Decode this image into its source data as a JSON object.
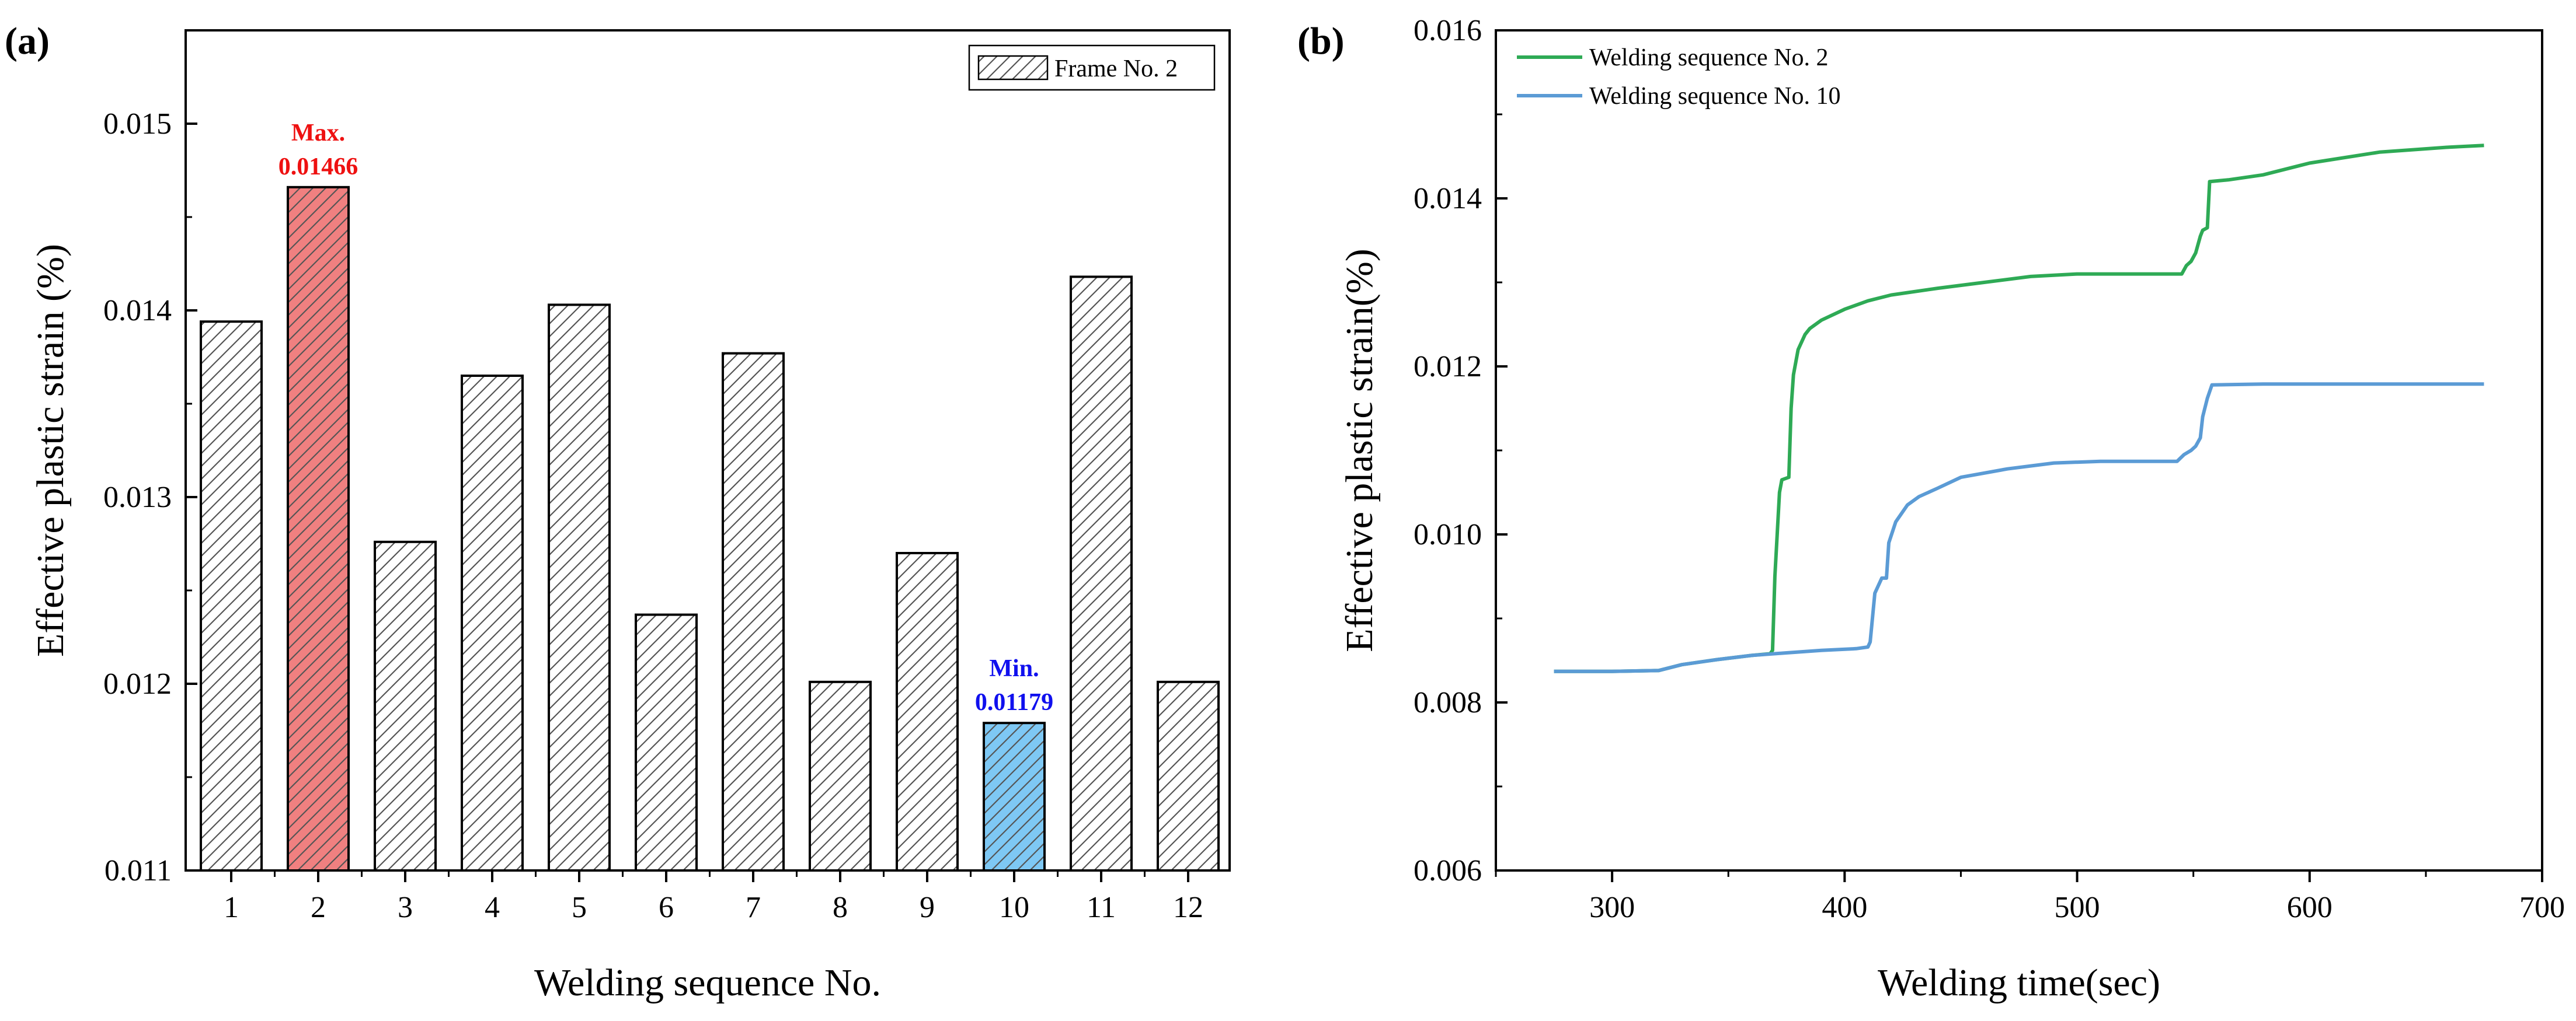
{
  "chart_data": [
    {
      "type": "bar",
      "panel_label": "(a)",
      "xlabel": "Welding sequence No.",
      "ylabel": "Effective plastic strain (%)",
      "ylim": [
        0.011,
        0.0155
      ],
      "yticks": [
        "0.011",
        "0.012",
        "0.013",
        "0.014",
        "0.015"
      ],
      "categories": [
        "1",
        "2",
        "3",
        "4",
        "5",
        "6",
        "7",
        "8",
        "9",
        "10",
        "11",
        "12"
      ],
      "values": [
        0.01394,
        0.01466,
        0.01276,
        0.01365,
        0.01403,
        0.01237,
        0.01377,
        0.01201,
        0.0127,
        0.01179,
        0.01418,
        0.01201
      ],
      "legend": "Frame No. 2",
      "bar_fill": "#ffffff",
      "hatch_color": "#555555",
      "highlights": [
        {
          "category": "2",
          "fill": "#f08080",
          "label_line1": "Max.",
          "label_line2": "0.01466",
          "color": "#ee1111"
        },
        {
          "category": "10",
          "fill": "#7ec8f4",
          "label_line1": "Min.",
          "label_line2": "0.01179",
          "color": "#1010ee"
        }
      ]
    },
    {
      "type": "line",
      "panel_label": "(b)",
      "xlabel": "Welding time(sec)",
      "ylabel": "Effective plastic strain(%)",
      "xlim": [
        250,
        700
      ],
      "ylim": [
        0.006,
        0.016
      ],
      "xticks": [
        "300",
        "400",
        "500",
        "600",
        "700"
      ],
      "yticks": [
        "0.006",
        "0.008",
        "0.010",
        "0.012",
        "0.014",
        "0.016"
      ],
      "series": [
        {
          "name": "Welding sequence No. 2",
          "color": "#2eaa55",
          "points": [
            [
              275,
              0.00837
            ],
            [
              300,
              0.00837
            ],
            [
              320,
              0.00838
            ],
            [
              330,
              0.00845
            ],
            [
              345,
              0.00851
            ],
            [
              360,
              0.00856
            ],
            [
              368,
              0.00858
            ],
            [
              369,
              0.00862
            ],
            [
              370,
              0.0095
            ],
            [
              372,
              0.0105
            ],
            [
              373,
              0.01065
            ],
            [
              376,
              0.01068
            ],
            [
              377,
              0.0115
            ],
            [
              378,
              0.0119
            ],
            [
              380,
              0.0122
            ],
            [
              383,
              0.01238
            ],
            [
              385,
              0.01245
            ],
            [
              390,
              0.01255
            ],
            [
              400,
              0.01268
            ],
            [
              410,
              0.01278
            ],
            [
              420,
              0.01285
            ],
            [
              440,
              0.01293
            ],
            [
              460,
              0.013
            ],
            [
              480,
              0.01307
            ],
            [
              500,
              0.0131
            ],
            [
              520,
              0.0131
            ],
            [
              545,
              0.0131
            ],
            [
              547,
              0.0132
            ],
            [
              549,
              0.01325
            ],
            [
              551,
              0.01335
            ],
            [
              552,
              0.01345
            ],
            [
              553,
              0.01355
            ],
            [
              554,
              0.01362
            ],
            [
              556,
              0.01365
            ],
            [
              557,
              0.0142
            ],
            [
              565,
              0.01422
            ],
            [
              580,
              0.01428
            ],
            [
              600,
              0.01442
            ],
            [
              630,
              0.01455
            ],
            [
              660,
              0.01461
            ],
            [
              675,
              0.01463
            ]
          ]
        },
        {
          "name": "Welding sequence No. 10",
          "color": "#5b9bd5",
          "points": [
            [
              275,
              0.00837
            ],
            [
              300,
              0.00837
            ],
            [
              320,
              0.00838
            ],
            [
              330,
              0.00845
            ],
            [
              345,
              0.00851
            ],
            [
              360,
              0.00856
            ],
            [
              375,
              0.00859
            ],
            [
              390,
              0.00862
            ],
            [
              405,
              0.00864
            ],
            [
              410,
              0.00866
            ],
            [
              411,
              0.00872
            ],
            [
              413,
              0.0093
            ],
            [
              416,
              0.00948
            ],
            [
              418,
              0.00948
            ],
            [
              419,
              0.0099
            ],
            [
              422,
              0.01015
            ],
            [
              427,
              0.01035
            ],
            [
              432,
              0.01045
            ],
            [
              440,
              0.01055
            ],
            [
              450,
              0.01068
            ],
            [
              470,
              0.01078
            ],
            [
              490,
              0.01085
            ],
            [
              510,
              0.01087
            ],
            [
              543,
              0.01087
            ],
            [
              546,
              0.01095
            ],
            [
              549,
              0.011
            ],
            [
              551,
              0.01105
            ],
            [
              553,
              0.01115
            ],
            [
              554,
              0.0114
            ],
            [
              556,
              0.01162
            ],
            [
              558,
              0.01178
            ],
            [
              580,
              0.01179
            ],
            [
              620,
              0.01179
            ],
            [
              660,
              0.01179
            ],
            [
              675,
              0.01179
            ]
          ]
        }
      ]
    }
  ]
}
